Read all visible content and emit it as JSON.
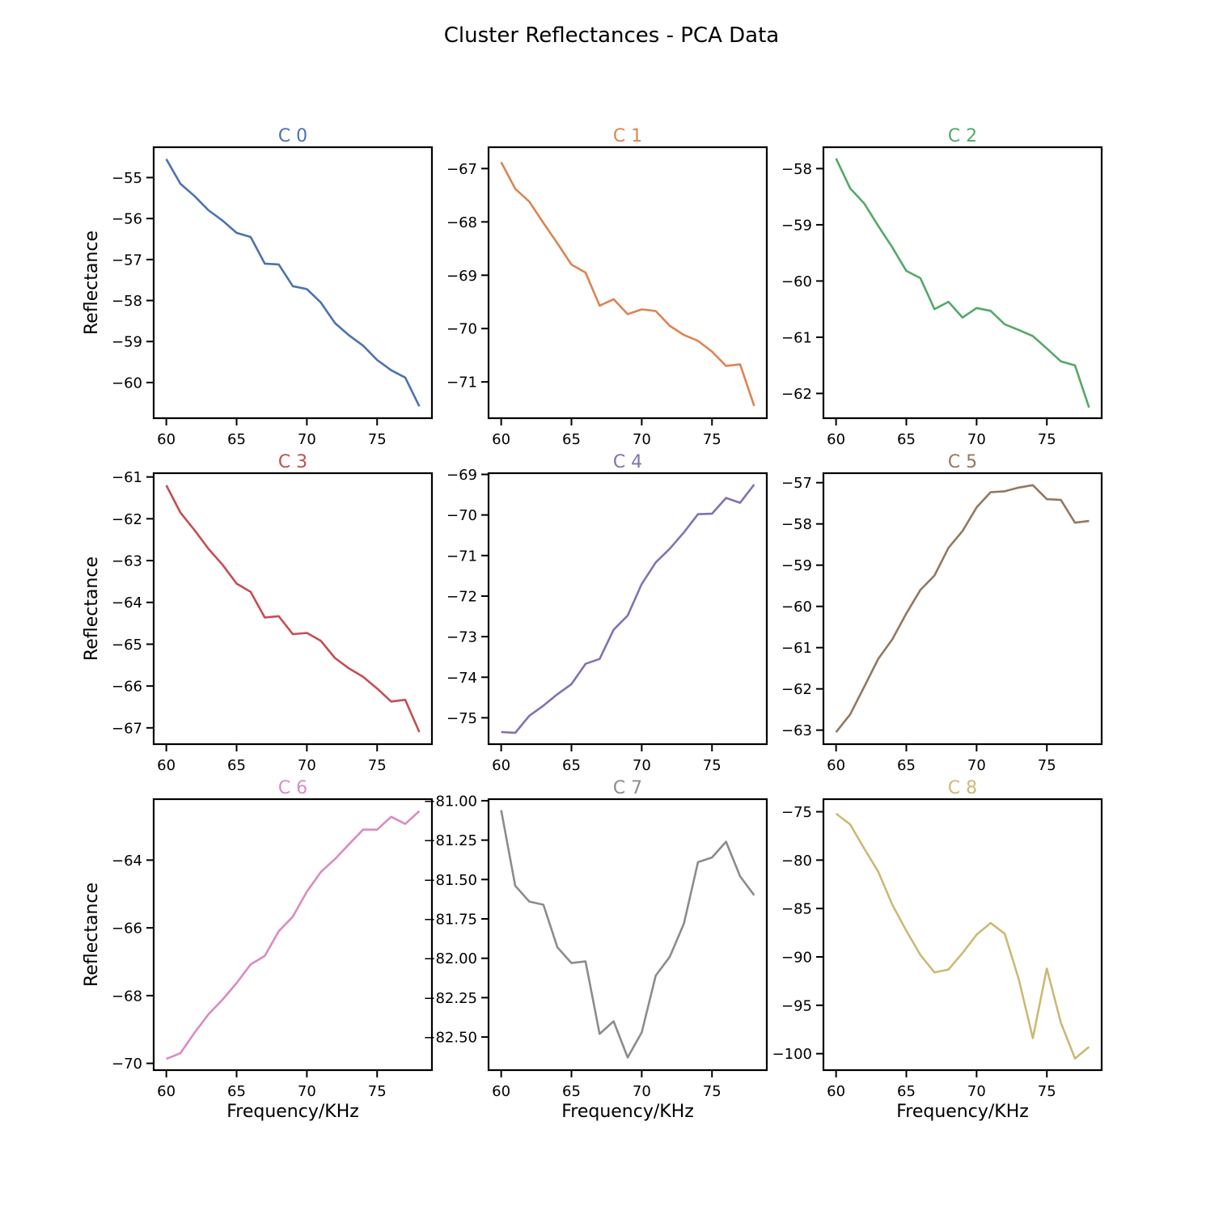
{
  "figure": {
    "title": "Cluster Reflectances - PCA Data",
    "xlabel": "Frequency/KHz",
    "ylabel": "Reflectance"
  },
  "chart_data": [
    {
      "type": "line",
      "title": "C 0",
      "color": "#4c72b0",
      "xlabel": "",
      "ylabel": "Reflectance",
      "x": [
        60,
        61,
        62,
        63,
        64,
        65,
        66,
        67,
        68,
        69,
        70,
        71,
        72,
        73,
        74,
        75,
        76,
        77,
        78
      ],
      "y": [
        -54.55,
        -55.15,
        -55.45,
        -55.8,
        -56.05,
        -56.35,
        -56.45,
        -57.1,
        -57.12,
        -57.65,
        -57.72,
        -58.05,
        -58.55,
        -58.85,
        -59.1,
        -59.45,
        -59.7,
        -59.88,
        -60.58
      ],
      "xlim": [
        59.1,
        78.9
      ],
      "ylim": [
        -60.87,
        -54.26
      ],
      "xticks": [
        60,
        65,
        70,
        75
      ],
      "yticks": [
        -55,
        -56,
        -57,
        -58,
        -59,
        -60
      ]
    },
    {
      "type": "line",
      "title": "C 1",
      "color": "#dd8452",
      "xlabel": "",
      "ylabel": "",
      "x": [
        60,
        61,
        62,
        63,
        64,
        65,
        66,
        67,
        68,
        69,
        70,
        71,
        72,
        73,
        74,
        75,
        76,
        77,
        78
      ],
      "y": [
        -66.88,
        -67.38,
        -67.62,
        -68.02,
        -68.4,
        -68.8,
        -68.95,
        -69.57,
        -69.45,
        -69.73,
        -69.64,
        -69.67,
        -69.95,
        -70.12,
        -70.23,
        -70.43,
        -70.7,
        -70.67,
        -71.45
      ],
      "xlim": [
        59.1,
        78.9
      ],
      "ylim": [
        -71.68,
        -66.6
      ],
      "xticks": [
        60,
        65,
        70,
        75
      ],
      "yticks": [
        -67,
        -68,
        -69,
        -70,
        -71
      ]
    },
    {
      "type": "line",
      "title": "C 2",
      "color": "#55a868",
      "xlabel": "",
      "ylabel": "",
      "x": [
        60,
        61,
        62,
        63,
        64,
        65,
        66,
        67,
        68,
        69,
        70,
        71,
        72,
        73,
        74,
        75,
        76,
        77,
        78
      ],
      "y": [
        -57.82,
        -58.35,
        -58.62,
        -59.02,
        -59.4,
        -59.82,
        -59.95,
        -60.5,
        -60.37,
        -60.65,
        -60.48,
        -60.53,
        -60.77,
        -60.87,
        -60.98,
        -61.2,
        -61.43,
        -61.5,
        -62.25
      ],
      "xlim": [
        59.1,
        78.9
      ],
      "ylim": [
        -62.44,
        -57.62
      ],
      "xticks": [
        60,
        65,
        70,
        75
      ],
      "yticks": [
        -58,
        -59,
        -60,
        -61,
        -62
      ]
    },
    {
      "type": "line",
      "title": "C 3",
      "color": "#c44e52",
      "xlabel": "",
      "ylabel": "Reflectance",
      "x": [
        60,
        61,
        62,
        63,
        64,
        65,
        66,
        67,
        68,
        69,
        70,
        71,
        72,
        73,
        74,
        75,
        76,
        77,
        78
      ],
      "y": [
        -61.2,
        -61.85,
        -62.27,
        -62.72,
        -63.1,
        -63.55,
        -63.75,
        -64.36,
        -64.33,
        -64.76,
        -64.73,
        -64.92,
        -65.33,
        -65.58,
        -65.78,
        -66.06,
        -66.37,
        -66.33,
        -67.1
      ],
      "xlim": [
        59.1,
        78.9
      ],
      "ylim": [
        -67.39,
        -60.91
      ],
      "xticks": [
        60,
        65,
        70,
        75
      ],
      "yticks": [
        -61,
        -62,
        -63,
        -64,
        -65,
        -66,
        -67
      ]
    },
    {
      "type": "line",
      "title": "C 4",
      "color": "#8172b3",
      "xlabel": "",
      "ylabel": "",
      "x": [
        60,
        61,
        62,
        63,
        64,
        65,
        66,
        67,
        68,
        69,
        70,
        71,
        72,
        73,
        74,
        75,
        76,
        77,
        78
      ],
      "y": [
        -75.35,
        -75.37,
        -74.95,
        -74.7,
        -74.42,
        -74.17,
        -73.67,
        -73.55,
        -72.83,
        -72.48,
        -71.7,
        -71.17,
        -70.83,
        -70.43,
        -69.98,
        -69.97,
        -69.58,
        -69.7,
        -69.25
      ],
      "xlim": [
        59.1,
        78.9
      ],
      "ylim": [
        -75.65,
        -68.97
      ],
      "xticks": [
        60,
        65,
        70,
        75
      ],
      "yticks": [
        -69,
        -70,
        -71,
        -72,
        -73,
        -74,
        -75
      ]
    },
    {
      "type": "line",
      "title": "C 5",
      "color": "#937860",
      "xlabel": "",
      "ylabel": "",
      "x": [
        60,
        61,
        62,
        63,
        64,
        65,
        66,
        67,
        68,
        69,
        70,
        71,
        72,
        73,
        74,
        75,
        76,
        77,
        78
      ],
      "y": [
        -63.05,
        -62.62,
        -61.95,
        -61.27,
        -60.8,
        -60.17,
        -59.6,
        -59.25,
        -58.58,
        -58.17,
        -57.6,
        -57.23,
        -57.21,
        -57.12,
        -57.06,
        -57.4,
        -57.42,
        -57.97,
        -57.93
      ],
      "xlim": [
        59.1,
        78.9
      ],
      "ylim": [
        -63.34,
        -56.77
      ],
      "xticks": [
        60,
        65,
        70,
        75
      ],
      "yticks": [
        -57,
        -58,
        -59,
        -60,
        -61,
        -62,
        -63
      ]
    },
    {
      "type": "line",
      "title": "C 6",
      "color": "#da8bc3",
      "xlabel": "Frequency/KHz",
      "ylabel": "Reflectance",
      "x": [
        60,
        61,
        62,
        63,
        64,
        65,
        66,
        67,
        68,
        69,
        70,
        71,
        72,
        73,
        74,
        75,
        76,
        77,
        78
      ],
      "y": [
        -69.87,
        -69.7,
        -69.1,
        -68.55,
        -68.12,
        -67.63,
        -67.08,
        -66.83,
        -66.1,
        -65.67,
        -64.93,
        -64.35,
        -63.97,
        -63.53,
        -63.1,
        -63.1,
        -62.72,
        -62.93,
        -62.55
      ],
      "xlim": [
        59.1,
        78.9
      ],
      "ylim": [
        -70.2,
        -62.2
      ],
      "xticks": [
        60,
        65,
        70,
        75
      ],
      "yticks": [
        -64,
        -66,
        -68,
        -70
      ]
    },
    {
      "type": "line",
      "title": "C 7",
      "color": "#8c8c8c",
      "xlabel": "Frequency/KHz",
      "ylabel": "",
      "x": [
        60,
        61,
        62,
        63,
        64,
        65,
        66,
        67,
        68,
        69,
        70,
        71,
        72,
        73,
        74,
        75,
        76,
        77,
        78
      ],
      "y": [
        -81.06,
        -81.54,
        -81.64,
        -81.66,
        -81.93,
        -82.03,
        -82.02,
        -82.48,
        -82.4,
        -82.63,
        -82.47,
        -82.11,
        -81.99,
        -81.78,
        -81.39,
        -81.36,
        -81.26,
        -81.48,
        -81.6
      ],
      "xlim": [
        59.1,
        78.9
      ],
      "ylim": [
        -82.71,
        -80.99
      ],
      "xticks": [
        60,
        65,
        70,
        75
      ],
      "yticks": [
        -81.0,
        -81.25,
        -81.5,
        -81.75,
        -82.0,
        -82.25,
        -82.5
      ],
      "ytick_labels": [
        "−81.00",
        "−81.25",
        "−81.50",
        "−81.75",
        "−82.00",
        "−82.25",
        "−82.50"
      ]
    },
    {
      "type": "line",
      "title": "C 8",
      "color": "#ccb974",
      "xlabel": "Frequency/KHz",
      "ylabel": "",
      "x": [
        60,
        61,
        62,
        63,
        64,
        65,
        66,
        67,
        68,
        69,
        70,
        71,
        72,
        73,
        74,
        75,
        76,
        77,
        78
      ],
      "y": [
        -75.2,
        -76.3,
        -78.8,
        -81.2,
        -84.6,
        -87.3,
        -89.8,
        -91.6,
        -91.3,
        -89.6,
        -87.7,
        -86.5,
        -87.6,
        -92.3,
        -98.4,
        -91.2,
        -96.8,
        -100.5,
        -99.3
      ],
      "xlim": [
        59.1,
        78.9
      ],
      "ylim": [
        -101.7,
        -73.7
      ],
      "xticks": [
        60,
        65,
        70,
        75
      ],
      "yticks": [
        -75,
        -80,
        -85,
        -90,
        -95,
        -100
      ]
    }
  ]
}
